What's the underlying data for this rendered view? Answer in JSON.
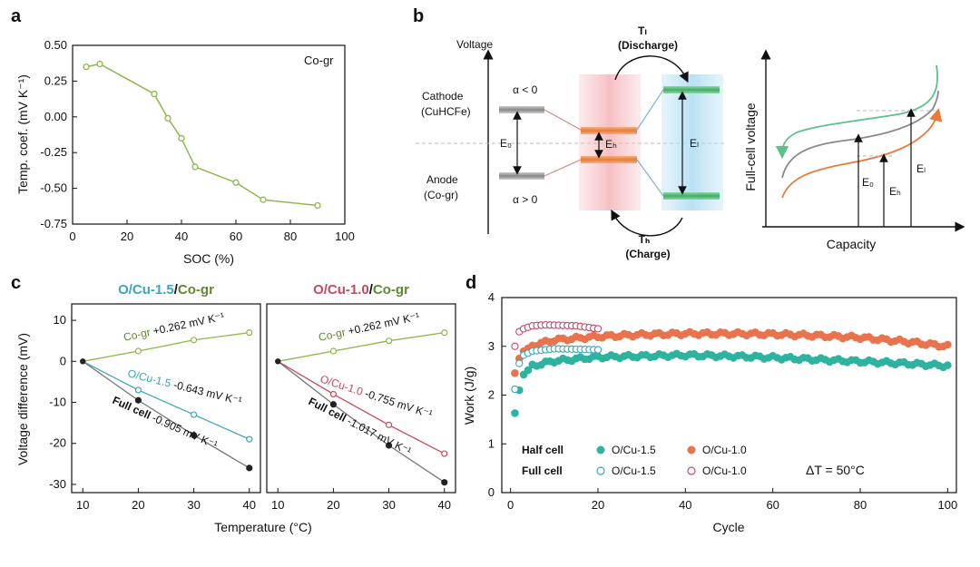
{
  "panel_labels": {
    "a": "a",
    "b": "b",
    "c": "c",
    "d": "d"
  },
  "colors": {
    "green": "#8cb84a",
    "green_dark": "#5c8a2e",
    "teal": "#3aa6b8",
    "crimson": "#c8485e",
    "gray": "#777777",
    "black": "#222222",
    "d_teal": "#2db3a0",
    "d_orange": "#e8734c",
    "d_pink": "#c24a6e",
    "b_orange": "#e87a3c",
    "b_green": "#3fae68"
  },
  "chart_data": [
    {
      "id": "a",
      "type": "line",
      "title": "Co-gr",
      "xlabel": "SOC (%)",
      "ylabel": "Temp. coef. (mV K⁻¹)",
      "xlim": [
        0,
        100
      ],
      "ylim": [
        -0.75,
        0.5
      ],
      "xticks": [
        "0",
        "20",
        "40",
        "60",
        "80",
        "100"
      ],
      "yticks": [
        "0.50",
        "0.25",
        "0.00",
        "-0.25",
        "-0.50",
        "-0.75"
      ],
      "x": [
        5,
        10,
        30,
        35,
        40,
        45,
        60,
        70,
        90
      ],
      "y": [
        0.35,
        0.37,
        0.16,
        -0.01,
        -0.15,
        -0.35,
        -0.46,
        -0.58,
        -0.62
      ]
    },
    {
      "id": "c1",
      "type": "line",
      "title_parts": [
        "O/Cu-1.5",
        "/",
        "Co-gr"
      ],
      "xlabel": "Temperature (°C)",
      "ylabel": "Voltage difference (mV)",
      "xlim": [
        8,
        42
      ],
      "ylim": [
        -32,
        14
      ],
      "xticks": [
        "10",
        "20",
        "30",
        "40"
      ],
      "yticks": [
        "10",
        "0",
        "-10",
        "-20",
        "-30"
      ],
      "series": [
        {
          "name": "Co-gr",
          "x": [
            10,
            20,
            30,
            40
          ],
          "y": [
            0,
            2.5,
            5.2,
            7
          ],
          "label_a": "Co-gr ",
          "label_b": "+0.262 mV K⁻¹"
        },
        {
          "name": "O/Cu-1.5",
          "x": [
            10,
            20,
            30,
            40
          ],
          "y": [
            0,
            -7,
            -13,
            -19
          ],
          "label_a": "O/Cu-1.5 ",
          "label_b": "-0.643 mV K⁻¹"
        },
        {
          "name": "Full cell",
          "x": [
            10,
            20,
            30,
            40
          ],
          "y": [
            0,
            -9.5,
            -18,
            -26
          ],
          "label_a": "Full cell ",
          "label_b": "-0.905 mV K⁻¹"
        }
      ]
    },
    {
      "id": "c2",
      "type": "line",
      "title_parts": [
        "O/Cu-1.0",
        "/",
        "Co-gr"
      ],
      "xlabel": "",
      "ylabel": "",
      "xlim": [
        8,
        42
      ],
      "ylim": [
        -32,
        14
      ],
      "xticks": [
        "10",
        "20",
        "30",
        "40"
      ],
      "yticks": [],
      "series": [
        {
          "name": "Co-gr",
          "x": [
            10,
            20,
            30,
            40
          ],
          "y": [
            0,
            2.5,
            5,
            7
          ],
          "label_a": "Co-gr ",
          "label_b": "+0.262 mV K⁻¹"
        },
        {
          "name": "O/Cu-1.0",
          "x": [
            10,
            20,
            30,
            40
          ],
          "y": [
            0,
            -8,
            -15.5,
            -22.5
          ],
          "label_a": "O/Cu-1.0 ",
          "label_b": "-0.755 mV K⁻¹"
        },
        {
          "name": "Full cell",
          "x": [
            10,
            20,
            30,
            40
          ],
          "y": [
            0,
            -10.5,
            -20.5,
            -29.5
          ],
          "label_a": "Full cell ",
          "label_b": "-1.017 mV K⁻¹"
        }
      ]
    },
    {
      "id": "d",
      "type": "scatter",
      "xlabel": "Cycle",
      "ylabel": "Work (J/g)",
      "xlim": [
        -2,
        102
      ],
      "ylim": [
        0,
        4
      ],
      "xticks": [
        "0",
        "20",
        "40",
        "60",
        "80",
        "100"
      ],
      "yticks": [
        "0",
        "1",
        "2",
        "3",
        "4"
      ],
      "legend_row_labels": [
        "Half cell",
        "Full cell"
      ],
      "legend_names": [
        "O/Cu-1.5",
        "O/Cu-1.0",
        "O/Cu-1.5",
        "O/Cu-1.0"
      ],
      "annotation": "ΔT = 50°C",
      "series": [
        {
          "name": "Half cell O/Cu-1.5",
          "key": [
            [
              1,
              1.63
            ],
            [
              2,
              2.1
            ],
            [
              3,
              2.42
            ],
            [
              5,
              2.6
            ],
            [
              10,
              2.7
            ],
            [
              20,
              2.78
            ],
            [
              30,
              2.8
            ],
            [
              40,
              2.82
            ],
            [
              50,
              2.8
            ],
            [
              60,
              2.77
            ],
            [
              70,
              2.73
            ],
            [
              80,
              2.69
            ],
            [
              90,
              2.65
            ],
            [
              100,
              2.6
            ]
          ]
        },
        {
          "name": "Half cell O/Cu-1.0",
          "key": [
            [
              1,
              2.45
            ],
            [
              2,
              2.75
            ],
            [
              3,
              2.9
            ],
            [
              5,
              3.02
            ],
            [
              10,
              3.13
            ],
            [
              20,
              3.2
            ],
            [
              30,
              3.24
            ],
            [
              40,
              3.26
            ],
            [
              50,
              3.26
            ],
            [
              60,
              3.25
            ],
            [
              70,
              3.22
            ],
            [
              80,
              3.18
            ],
            [
              90,
              3.1
            ],
            [
              100,
              3.0
            ]
          ]
        },
        {
          "name": "Full cell O/Cu-1.5",
          "key": [
            [
              1,
              2.12
            ],
            [
              2,
              2.65
            ],
            [
              3,
              2.82
            ],
            [
              5,
              2.9
            ],
            [
              10,
              2.95
            ],
            [
              20,
              2.93
            ]
          ]
        },
        {
          "name": "Full cell O/Cu-1.0",
          "key": [
            [
              1,
              3.0
            ],
            [
              2,
              3.3
            ],
            [
              3,
              3.36
            ],
            [
              5,
              3.42
            ],
            [
              8,
              3.44
            ],
            [
              15,
              3.42
            ],
            [
              20,
              3.36
            ]
          ]
        }
      ]
    }
  ],
  "diagram_b": {
    "voltage_label": "Voltage",
    "cathode": "Cathode",
    "cathode_sub": "(CuHCFe)",
    "anode": "Anode",
    "anode_sub": "(Co-gr)",
    "alpha_neg": "α < 0",
    "alpha_pos": "α > 0",
    "e0": "E₀",
    "eh": "Eₕ",
    "el": "Eₗ",
    "tl": "Tₗ",
    "tl_sub": "(Discharge)",
    "th": "Tₕ",
    "th_sub": "(Charge)",
    "full_cell": "Full-cell voltage",
    "capacity": "Capacity",
    "e0_2": "E₀",
    "eh_2": "Eₕ",
    "el_2": "Eₗ"
  }
}
